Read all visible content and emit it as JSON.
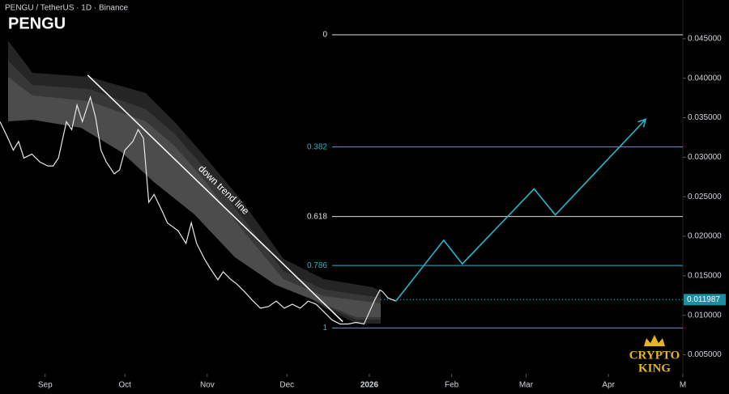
{
  "chart_data": {
    "type": "line",
    "title": "PENGU / TetherUS · 1D · Binance",
    "subtitle": "PENGU",
    "xlim": [
      -17,
      240
    ],
    "ylim": [
      0.0026,
      0.0499
    ],
    "xticks": [
      {
        "value": 0,
        "label": "Sep"
      },
      {
        "value": 30,
        "label": "Oct"
      },
      {
        "value": 61,
        "label": "Nov"
      },
      {
        "value": 91,
        "label": "Dec"
      },
      {
        "value": 122,
        "label": "2026"
      },
      {
        "value": 153,
        "label": "Feb"
      },
      {
        "value": 181,
        "label": "Mar"
      },
      {
        "value": 212,
        "label": "Apr"
      },
      {
        "value": 240,
        "label": "M"
      }
    ],
    "yticks": [
      {
        "value": 0.005,
        "label": "0.005000"
      },
      {
        "value": 0.01,
        "label": "0.010000"
      },
      {
        "value": 0.015,
        "label": "0.015000"
      },
      {
        "value": 0.02,
        "label": "0.020000"
      },
      {
        "value": 0.025,
        "label": "0.025000"
      },
      {
        "value": 0.03,
        "label": "0.030000"
      },
      {
        "value": 0.035,
        "label": "0.035000"
      },
      {
        "value": 0.04,
        "label": "0.040000"
      },
      {
        "value": 0.045,
        "label": "0.045000"
      }
    ],
    "series": [
      {
        "color": "#e8e8e8",
        "x": [
          -17,
          -14,
          -12,
          -10,
          -8,
          -5,
          -2,
          1,
          3,
          5,
          8,
          10,
          12,
          14,
          17,
          19,
          21,
          23,
          26,
          28,
          30,
          33,
          35,
          37,
          39,
          41,
          44,
          46,
          48,
          50,
          53,
          55,
          57,
          60,
          62,
          65,
          67,
          70,
          72,
          75,
          78,
          81,
          84,
          87,
          90,
          93,
          96,
          99,
          102,
          105,
          108,
          111,
          114,
          117,
          120,
          122,
          124,
          126,
          127,
          129,
          132
        ],
        "values": [
          0.0345,
          0.0324,
          0.0309,
          0.032,
          0.0299,
          0.0304,
          0.0294,
          0.0289,
          0.0289,
          0.0299,
          0.0345,
          0.0335,
          0.0366,
          0.0345,
          0.0376,
          0.035,
          0.0309,
          0.0294,
          0.0279,
          0.0284,
          0.0309,
          0.032,
          0.0335,
          0.0324,
          0.0243,
          0.0253,
          0.0232,
          0.0217,
          0.0212,
          0.0207,
          0.0191,
          0.0217,
          0.0191,
          0.0171,
          0.016,
          0.0145,
          0.0155,
          0.0145,
          0.014,
          0.013,
          0.0119,
          0.0109,
          0.0111,
          0.0118,
          0.0109,
          0.0114,
          0.0109,
          0.0118,
          0.0114,
          0.0104,
          0.0094,
          0.0089,
          0.0089,
          0.0091,
          0.0089,
          0.0104,
          0.0119,
          0.0132,
          0.013,
          0.0122,
          0.0118
        ]
      },
      {
        "color": "#26b7c9",
        "x": [
          132,
          150,
          157,
          184,
          192,
          226
        ],
        "values": [
          0.0118,
          0.0195,
          0.0165,
          0.026,
          0.0227,
          0.0348
        ]
      }
    ],
    "levels": [
      {
        "label": "0",
        "value": 0.0455,
        "color": "#e0e0e0"
      },
      {
        "label": "0.382",
        "value": 0.0313,
        "color": "#26b7c9"
      },
      {
        "label": "0.618",
        "value": 0.0225,
        "color": "#e0e0e0"
      },
      {
        "label": "0.786",
        "value": 0.0163,
        "color": "#26b7c9"
      },
      {
        "label": "1",
        "value": 0.0084,
        "color": "#26b7c9"
      }
    ],
    "trend_line": {
      "label": "down trend line",
      "x": [
        16,
        112
      ],
      "values": [
        0.0404,
        0.0092
      ],
      "color": "#ffffff"
    },
    "last_price": {
      "value": 0.011987,
      "label": "0.011987"
    },
    "watermark": [
      "CRYPTO",
      "KING"
    ]
  }
}
